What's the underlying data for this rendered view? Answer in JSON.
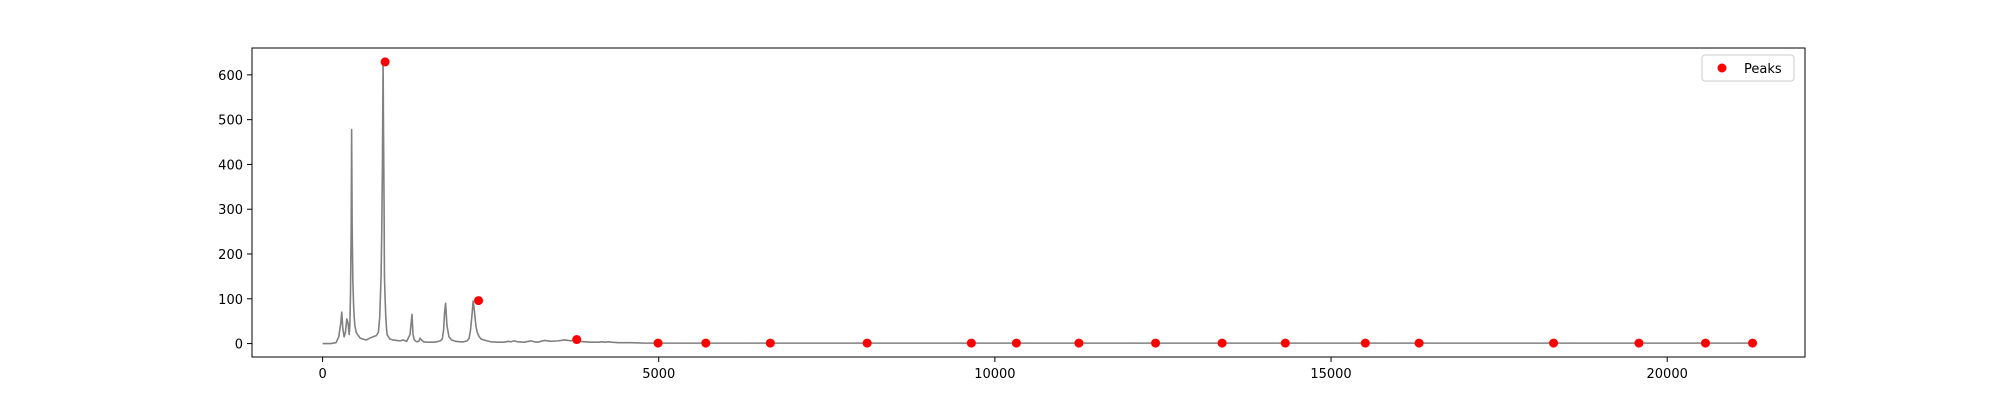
{
  "chart_data": {
    "type": "line",
    "title": "",
    "xlabel": "",
    "ylabel": "",
    "xlim": [
      -1050,
      22050
    ],
    "ylim": [
      -30,
      660
    ],
    "xticks": [
      0,
      5000,
      10000,
      15000,
      20000
    ],
    "yticks": [
      0,
      100,
      200,
      300,
      400,
      500,
      600
    ],
    "grid": false,
    "legend": {
      "placement": "top-right",
      "entries": [
        "Peaks"
      ]
    },
    "series": [
      {
        "kind": "line",
        "color": "#808080",
        "x": [
          0,
          120,
          200,
          240,
          270,
          285,
          300,
          320,
          340,
          360,
          380,
          395,
          405,
          415,
          425,
          432,
          440,
          450,
          460,
          470,
          480,
          500,
          530,
          560,
          600,
          650,
          700,
          750,
          800,
          830,
          850,
          870,
          880,
          890,
          900,
          905,
          910,
          915,
          920,
          930,
          940,
          950,
          960,
          980,
          1000,
          1050,
          1100,
          1150,
          1200,
          1250,
          1300,
          1330,
          1345,
          1360,
          1380,
          1400,
          1430,
          1450,
          1470,
          1500,
          1550,
          1600,
          1650,
          1700,
          1750,
          1780,
          1800,
          1815,
          1830,
          1850,
          1880,
          1920,
          1980,
          2050,
          2100,
          2150,
          2180,
          2200,
          2220,
          2240,
          2260,
          2280,
          2300,
          2330,
          2360,
          2400,
          2450,
          2500,
          2600,
          2700,
          2760,
          2800,
          2850,
          2900,
          3000,
          3100,
          3150,
          3200,
          3250,
          3300,
          3400,
          3500,
          3600,
          3700,
          3760,
          3800,
          3900,
          4000,
          4100,
          4150,
          4200,
          4250,
          4300,
          4400,
          4600,
          4800,
          5000,
          6000,
          8000,
          10000,
          12000,
          14000,
          16000,
          18000,
          20000,
          21300
        ],
        "y": [
          0,
          0,
          2,
          15,
          45,
          70,
          35,
          15,
          25,
          55,
          45,
          20,
          40,
          110,
          250,
          478,
          260,
          140,
          90,
          60,
          40,
          25,
          18,
          12,
          10,
          8,
          12,
          15,
          18,
          25,
          60,
          150,
          250,
          400,
          629,
          500,
          400,
          300,
          150,
          100,
          60,
          35,
          20,
          15,
          10,
          8,
          7,
          6,
          8,
          5,
          20,
          65,
          20,
          10,
          6,
          4,
          5,
          12,
          8,
          4,
          3,
          3,
          3,
          4,
          6,
          10,
          30,
          70,
          90,
          40,
          15,
          8,
          5,
          4,
          4,
          6,
          12,
          30,
          60,
          95,
          70,
          40,
          25,
          15,
          10,
          8,
          6,
          4,
          3,
          3,
          5,
          4,
          6,
          4,
          3,
          6,
          4,
          3,
          5,
          7,
          5,
          6,
          8,
          6,
          9,
          5,
          4,
          3,
          3,
          4,
          3,
          4,
          3,
          2,
          2,
          1,
          1,
          1,
          1,
          1,
          1,
          1,
          1,
          1,
          1,
          1
        ]
      },
      {
        "kind": "scatter",
        "name": "Peaks",
        "color": "#ff0000",
        "x": [
          930,
          2320,
          3780,
          4990,
          5700,
          6660,
          8100,
          9650,
          10320,
          11250,
          12390,
          13380,
          14320,
          15510,
          16310,
          18310,
          19580,
          20570,
          21270
        ],
        "y": [
          629,
          96,
          9,
          1,
          1,
          1,
          1,
          1,
          1,
          1,
          1,
          1,
          1,
          1,
          1,
          1,
          1,
          1,
          1
        ]
      }
    ]
  }
}
